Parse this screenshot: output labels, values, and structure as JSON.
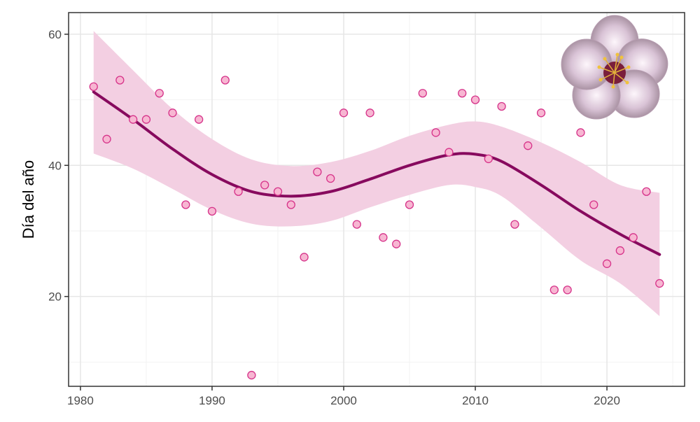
{
  "chart_data": {
    "type": "scatter",
    "title": "",
    "xlabel": "",
    "ylabel": "Día del año",
    "xlim": [
      1979.1,
      2025.9
    ],
    "ylim": [
      6.3,
      63.3
    ],
    "x_ticks": [
      1980,
      1990,
      2000,
      2010,
      2020
    ],
    "y_ticks": [
      20,
      40,
      60
    ],
    "x_tick_labels": [
      "1980",
      "1990",
      "2000",
      "2010",
      "2020"
    ],
    "y_tick_labels": [
      "20",
      "40",
      "60"
    ],
    "grid": true,
    "legend": "none",
    "decoration": "almond-blossom-image",
    "colors": {
      "point_fill": "#f7b6d2",
      "point_stroke": "#d6338a",
      "trend_line": "#870a5e",
      "confidence_band": "#f3cfe2",
      "grid_major": "#e6e6e6",
      "grid_minor": "#f2f2f2",
      "panel_border": "#333333"
    },
    "series": [
      {
        "type": "points",
        "x": [
          1981,
          1982,
          1983,
          1984,
          1985,
          1986,
          1987,
          1988,
          1989,
          1990,
          1991,
          1992,
          1993,
          1994,
          1995,
          1996,
          1997,
          1998,
          1999,
          2000,
          2001,
          2002,
          2003,
          2004,
          2005,
          2006,
          2007,
          2008,
          2009,
          2010,
          2011,
          2012,
          2013,
          2014,
          2015,
          2016,
          2017,
          2018,
          2019,
          2020,
          2021,
          2022,
          2023,
          2024
        ],
        "y": [
          52,
          44,
          53,
          47,
          47,
          51,
          48,
          34,
          47,
          33,
          53,
          36,
          8,
          37,
          36,
          34,
          26,
          39,
          38,
          48,
          31,
          48,
          29,
          28,
          34,
          51,
          45,
          42,
          51,
          50,
          41,
          49,
          31,
          43,
          48,
          21,
          21,
          45,
          34,
          25,
          27,
          29,
          36,
          22
        ]
      },
      {
        "type": "smooth",
        "x": [
          1981,
          1984,
          1987,
          1990,
          1993,
          1996,
          1999,
          2002,
          2005,
          2008,
          2010,
          2012,
          2015,
          2018,
          2021,
          2024
        ],
        "y": [
          51.2,
          47.0,
          42.5,
          38.6,
          36.0,
          35.3,
          36.0,
          37.9,
          40.0,
          41.6,
          41.7,
          40.6,
          37.0,
          33.0,
          29.5,
          26.4
        ],
        "upper": [
          60.5,
          54.5,
          48.6,
          44.0,
          40.9,
          39.9,
          40.5,
          42.2,
          44.5,
          46.2,
          46.7,
          45.9,
          43.5,
          40.5,
          37.0,
          35.8
        ],
        "lower": [
          41.8,
          39.5,
          36.4,
          33.2,
          31.1,
          30.7,
          31.5,
          33.6,
          35.5,
          37.0,
          36.7,
          35.3,
          30.5,
          25.5,
          22.0,
          17.0
        ]
      }
    ]
  }
}
